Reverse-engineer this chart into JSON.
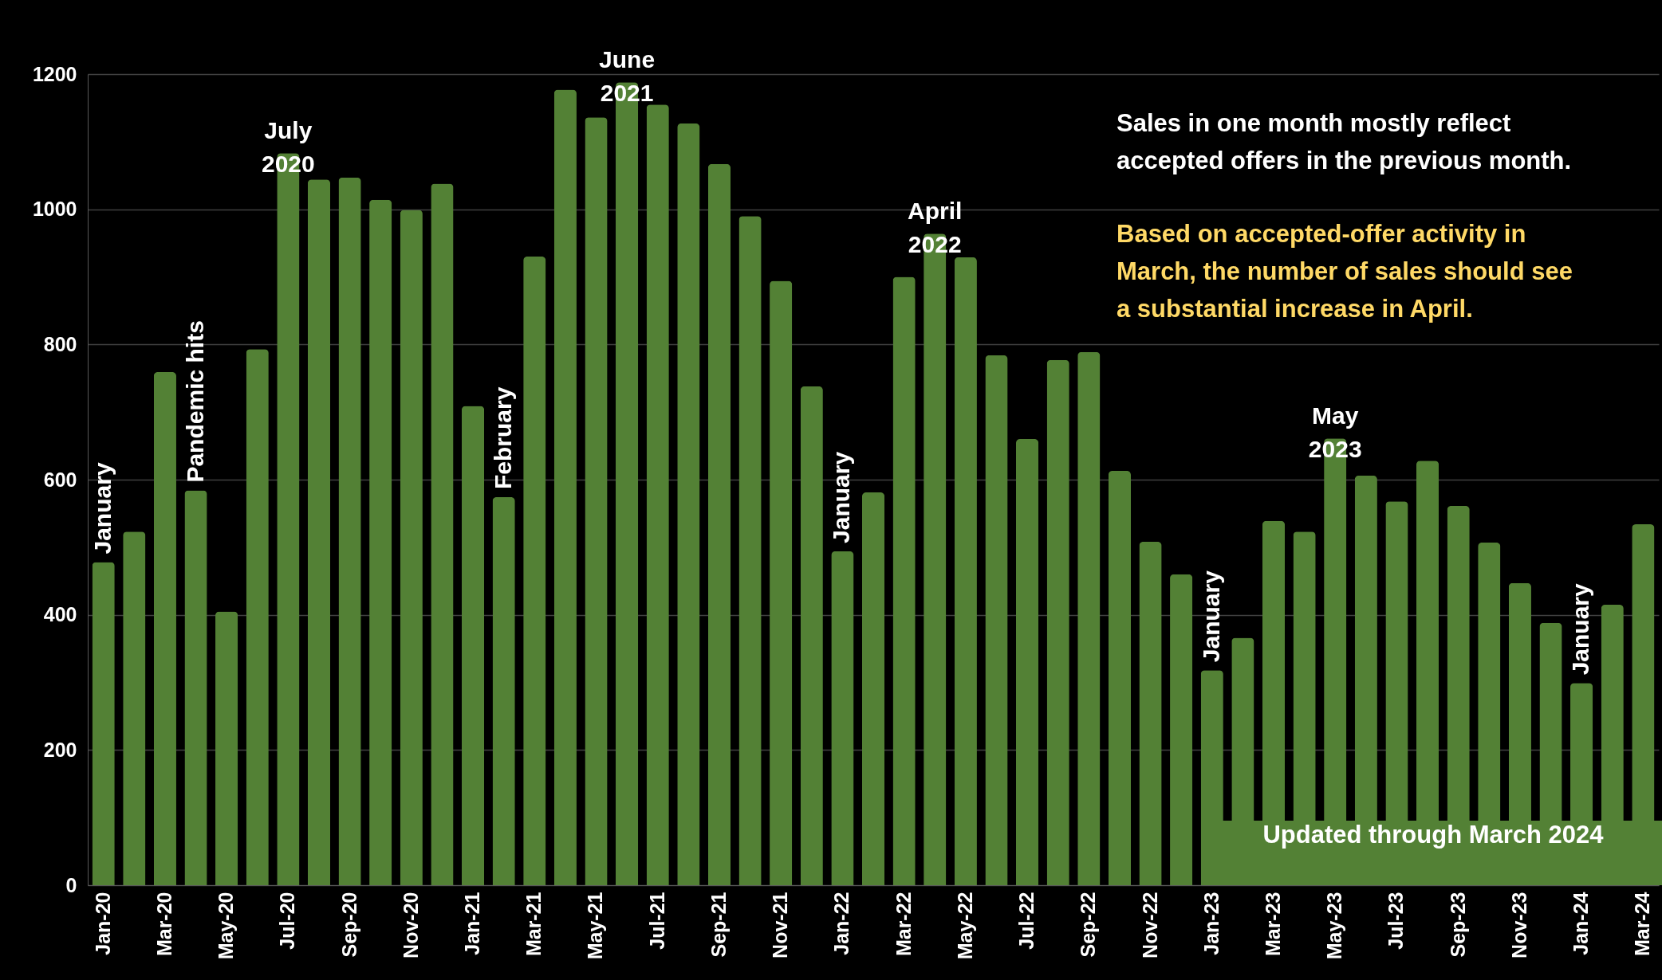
{
  "chart_data": {
    "type": "bar",
    "x": [
      "2020-01",
      "2020-02",
      "2020-03",
      "2020-04",
      "2020-05",
      "2020-06",
      "2020-07",
      "2020-08",
      "2020-09",
      "2020-10",
      "2020-11",
      "2020-12",
      "2021-01",
      "2021-02",
      "2021-03",
      "2021-04",
      "2021-05",
      "2021-06",
      "2021-07",
      "2021-08",
      "2021-09",
      "2021-10",
      "2021-11",
      "2021-12",
      "2022-01",
      "2022-02",
      "2022-03",
      "2022-04",
      "2022-05",
      "2022-06",
      "2022-07",
      "2022-08",
      "2022-09",
      "2022-10",
      "2022-11",
      "2022-12",
      "2023-01",
      "2023-02",
      "2023-03",
      "2023-04",
      "2023-05",
      "2023-06",
      "2023-07",
      "2023-08",
      "2023-09",
      "2023-10",
      "2023-11",
      "2023-12",
      "2024-01",
      "2024-02",
      "2024-03"
    ],
    "values": [
      478,
      523,
      759,
      584,
      405,
      793,
      1083,
      1044,
      1047,
      1014,
      999,
      1038,
      709,
      574,
      930,
      1177,
      1136,
      1188,
      1155,
      1127,
      1067,
      990,
      894,
      738,
      494,
      581,
      900,
      964,
      929,
      784,
      660,
      777,
      789,
      613,
      508,
      460,
      318,
      366,
      539,
      523,
      661,
      606,
      568,
      628,
      561,
      507,
      447,
      388,
      299,
      415,
      534
    ],
    "color": "#538135",
    "xticks": [
      {
        "value": "2020-01",
        "label": "Jan-20"
      },
      {
        "value": "2020-03",
        "label": "Mar-20"
      },
      {
        "value": "2020-05",
        "label": "May-20"
      },
      {
        "value": "2020-07",
        "label": "Jul-20"
      },
      {
        "value": "2020-09",
        "label": "Sep-20"
      },
      {
        "value": "2020-11",
        "label": "Nov-20"
      },
      {
        "value": "2021-01",
        "label": "Jan-21"
      },
      {
        "value": "2021-03",
        "label": "Mar-21"
      },
      {
        "value": "2021-05",
        "label": "May-21"
      },
      {
        "value": "2021-07",
        "label": "Jul-21"
      },
      {
        "value": "2021-09",
        "label": "Sep-21"
      },
      {
        "value": "2021-11",
        "label": "Nov-21"
      },
      {
        "value": "2022-01",
        "label": "Jan-22"
      },
      {
        "value": "2022-03",
        "label": "Mar-22"
      },
      {
        "value": "2022-05",
        "label": "May-22"
      },
      {
        "value": "2022-07",
        "label": "Jul-22"
      },
      {
        "value": "2022-09",
        "label": "Sep-22"
      },
      {
        "value": "2022-11",
        "label": "Nov-22"
      },
      {
        "value": "2023-01",
        "label": "Jan-23"
      },
      {
        "value": "2023-03",
        "label": "Mar-23"
      },
      {
        "value": "2023-05",
        "label": "May-23"
      },
      {
        "value": "2023-07",
        "label": "Jul-23"
      },
      {
        "value": "2023-09",
        "label": "Sep-23"
      },
      {
        "value": "2023-11",
        "label": "Nov-23"
      },
      {
        "value": "2024-01",
        "label": "Jan-24"
      },
      {
        "value": "2024-03",
        "label": "Mar-24"
      }
    ],
    "xlim": [
      "2019-12-16",
      "2024-03-16"
    ],
    "ylim": [
      0,
      1200
    ],
    "yticks": [
      0,
      200,
      400,
      600,
      800,
      1000,
      1200
    ],
    "grid": "y",
    "annotations": [
      {
        "text": "January",
        "x": "2020-01",
        "y": 478
      },
      {
        "text": "Pandemic hits",
        "x": "2020-04",
        "y": 584
      },
      {
        "text": "July\n2020",
        "x": "2020-07",
        "y": 1083
      },
      {
        "text": "February",
        "x": "2021-02",
        "y": 574
      },
      {
        "text": "June\n2021",
        "x": "2021-06",
        "y": 1188
      },
      {
        "text": "January",
        "x": "2022-01",
        "y": 494
      },
      {
        "text": "April\n2022",
        "x": "2022-04",
        "y": 964
      },
      {
        "text": "January",
        "x": "2023-01",
        "y": 318
      },
      {
        "text": "May\n2023",
        "x": "2023-05",
        "y": 661
      },
      {
        "text": "January",
        "x": "2024-01",
        "y": 299
      },
      "Sales in one month mostly reflect accepted offers in the previous month.",
      "Based on accepted-offer activity in March, the number of sales should see a substantial increase in April.",
      "Updated through March 2024"
    ]
  }
}
